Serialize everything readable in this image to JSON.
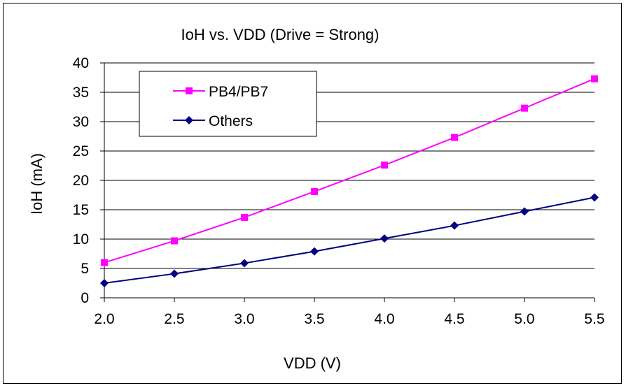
{
  "chart_data": {
    "type": "line",
    "title": "IoH vs. VDD (Drive = Strong)",
    "xlabel": "VDD (V)",
    "ylabel": "IoH (mA)",
    "x": [
      2.0,
      2.5,
      3.0,
      3.5,
      4.0,
      4.5,
      5.0,
      5.5
    ],
    "x_tick_labels": [
      "2.0",
      "2.5",
      "3.0",
      "3.5",
      "4.0",
      "4.5",
      "5.0",
      "5.5"
    ],
    "y_ticks": [
      0,
      5,
      10,
      15,
      20,
      25,
      30,
      35,
      40
    ],
    "xlim": [
      2.0,
      5.5
    ],
    "ylim": [
      0,
      40
    ],
    "grid": "horizontal",
    "legend_position": "top-left",
    "series": [
      {
        "name": "PB4/PB7",
        "color": "#ff00ff",
        "marker": "square",
        "values": [
          6.0,
          9.7,
          13.7,
          18.1,
          22.6,
          27.3,
          32.3,
          37.3
        ]
      },
      {
        "name": "Others",
        "color": "#000080",
        "marker": "diamond",
        "values": [
          2.5,
          4.1,
          5.9,
          7.9,
          10.1,
          12.3,
          14.7,
          17.1
        ]
      }
    ]
  }
}
